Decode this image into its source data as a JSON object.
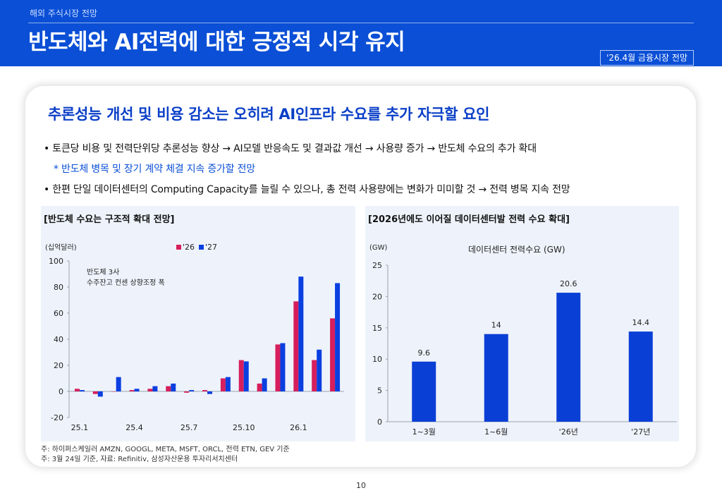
{
  "header": {
    "breadcrumb": "해외 주식시장 전망",
    "title": "반도체와 AI전력에 대한 긍정적 시각 유지",
    "date_tag": "'26.4월 금융시장 전망"
  },
  "content": {
    "subtitle": "추론성능 개선 및 비용 감소는 오히려 AI인프라 수요를 추가 자극할 요인",
    "bullet1": "• 토큰당 비용 및 전력단위당 추론성능 향상 → AI모델 반응속도 및 결과값 개선 → 사용량 증가 → 반도체 수요의 추가 확대",
    "note": "* 반도체 병목 및 장기 계약 체결 지속 증가할 전망",
    "bullet2": "• 한편 단일 데이터센터의 Computing Capacity를 늘릴 수 있으나, 총 전력 사용량에는 변화가 미미할 것 → 전력 병목 지속 전망"
  },
  "footnotes": {
    "line1": "주: 하이퍼스케일러 AMZN, GOOGL, META, MSFT, ORCL, 전력 ETN, GEV 기준",
    "line2": "주: 3월 24일 기준, 자료: Refinitiv, 삼성자산운용 투자리서치센터"
  },
  "page_number": "10",
  "colors": {
    "brand_blue": "#0a4fd6",
    "series_26": "#d61f5c",
    "series_27": "#0a3fe0",
    "bar_blue": "#0a3fd6"
  },
  "chart_data": [
    {
      "type": "bar",
      "panel_title": "[반도체 수요는 구조적 확대 전망]",
      "ylabel": "(십억달러)",
      "ylim": [
        -20,
        100
      ],
      "yticks": [
        -20,
        0,
        20,
        40,
        60,
        80,
        100
      ],
      "xtick_labels": [
        "25.1",
        "25.4",
        "25.7",
        "25.10",
        "26.1"
      ],
      "xtick_positions": [
        0,
        3,
        6,
        9,
        12
      ],
      "annotation": [
        "반도체 3사",
        "수주잔고 컨센 상향조정 폭"
      ],
      "legend": [
        "'26",
        "'27"
      ],
      "series": [
        {
          "name": "'26",
          "color": "#d61f5c",
          "values": [
            2,
            -2,
            0,
            1,
            2,
            4,
            -1,
            1,
            10,
            24,
            6,
            36,
            69,
            24,
            56
          ]
        },
        {
          "name": "'27",
          "color": "#0a3fe0",
          "values": [
            1,
            -4,
            11,
            2,
            4,
            6,
            1,
            -2,
            11,
            23,
            10,
            37,
            88,
            32,
            83
          ]
        }
      ]
    },
    {
      "type": "bar",
      "panel_title": "[2026년에도 이어질 데이터센터발 전력 수요 확대]",
      "title": "데이터센터 전력수요 (GW)",
      "ylabel": "(GW)",
      "ylim": [
        0,
        25
      ],
      "yticks": [
        0,
        5,
        10,
        15,
        20,
        25
      ],
      "categories": [
        "1~3월",
        "1~6월",
        "'26년",
        "'27년"
      ],
      "values": [
        9.6,
        14,
        20.6,
        14.4
      ],
      "data_labels": [
        "9.6",
        "14",
        "20.6",
        "14.4"
      ]
    }
  ]
}
